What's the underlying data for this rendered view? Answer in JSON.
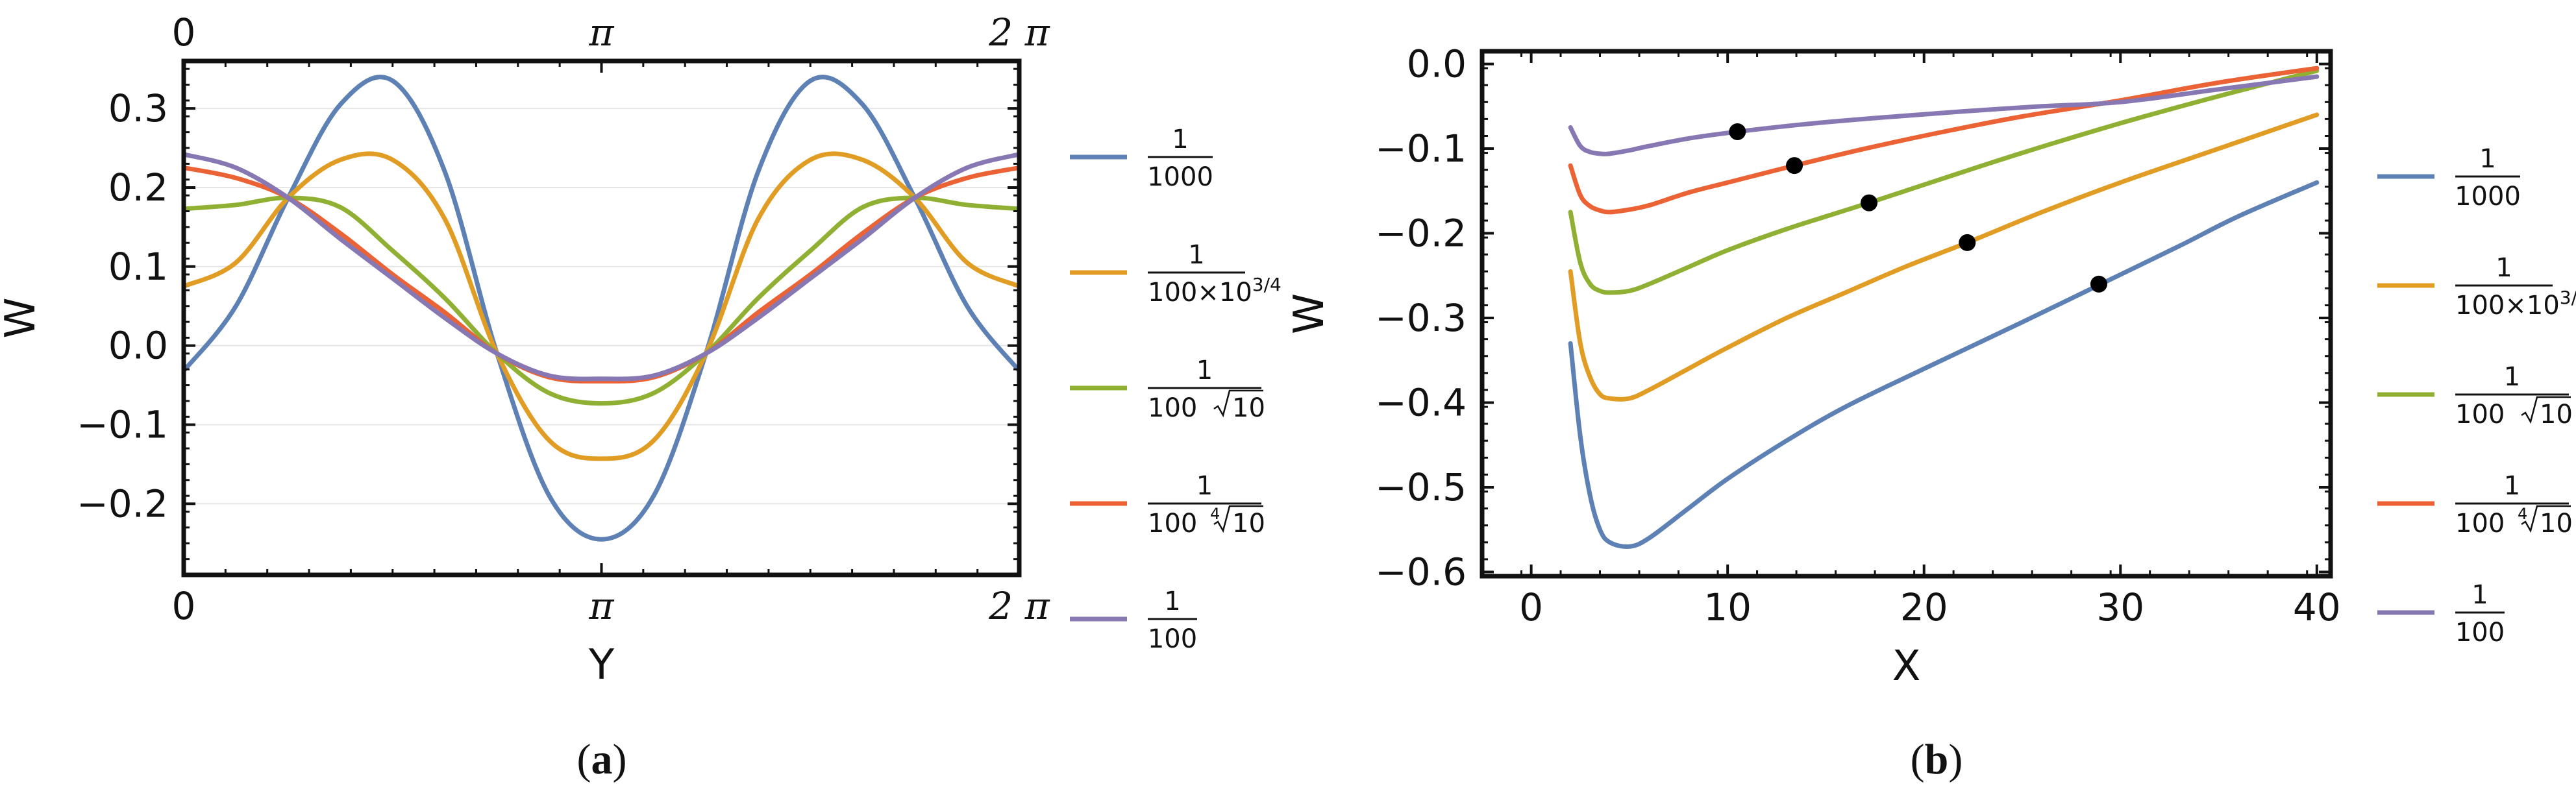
{
  "chart_data": [
    {
      "id": "a",
      "type": "line",
      "panel_label": "a",
      "xlabel": "Y",
      "ylabel": "W",
      "xlim": [
        0,
        6.2832
      ],
      "ylim": [
        -0.29,
        0.36
      ],
      "xticks": [
        {
          "value": 0,
          "label": "0"
        },
        {
          "value": 3.14159,
          "label": "π"
        },
        {
          "value": 6.28318,
          "label": "2 π"
        }
      ],
      "top_xticks": [
        {
          "value": 0,
          "label": "0"
        },
        {
          "value": 3.14159,
          "label": "π"
        },
        {
          "value": 6.28318,
          "label": "2 π"
        }
      ],
      "yticks": [
        {
          "value": -0.2,
          "label": "−0.2"
        },
        {
          "value": -0.1,
          "label": "−0.1"
        },
        {
          "value": 0.0,
          "label": "0.0"
        },
        {
          "value": 0.1,
          "label": "0.1"
        },
        {
          "value": 0.2,
          "label": "0.2"
        },
        {
          "value": 0.3,
          "label": "0.3"
        }
      ],
      "grid": "horizontal",
      "legend_position": "right",
      "series": [
        {
          "name": "1/1000",
          "color": "#5E81B5",
          "x": [
            0,
            0.3927,
            0.7854,
            1.1781,
            1.5708,
            1.9635,
            2.3562,
            2.7489,
            3.1416,
            3.5343,
            3.927,
            4.3197,
            4.7124,
            5.1051,
            5.4978,
            5.8905,
            6.2832
          ],
          "y": [
            -0.032,
            0.05,
            0.187,
            0.305,
            0.335,
            0.22,
            -0.01,
            -0.19,
            -0.245,
            -0.19,
            -0.01,
            0.22,
            0.335,
            0.305,
            0.187,
            0.05,
            -0.032
          ]
        },
        {
          "name": "1/(100×10^{3/4})",
          "color": "#E19C24",
          "x": [
            0,
            0.3927,
            0.7854,
            1.1781,
            1.5708,
            1.9635,
            2.3562,
            2.7489,
            3.1416,
            3.5343,
            3.927,
            4.3197,
            4.7124,
            5.1051,
            5.4978,
            5.8905,
            6.2832
          ],
          "y": [
            0.075,
            0.105,
            0.187,
            0.235,
            0.235,
            0.16,
            -0.01,
            -0.12,
            -0.143,
            -0.12,
            -0.01,
            0.16,
            0.235,
            0.235,
            0.187,
            0.105,
            0.075
          ]
        },
        {
          "name": "1/(100 √10)",
          "color": "#8FB032",
          "x": [
            0,
            0.3927,
            0.7854,
            1.1781,
            1.5708,
            1.9635,
            2.3562,
            2.7489,
            3.1416,
            3.5343,
            3.927,
            4.3197,
            4.7124,
            5.1051,
            5.4978,
            5.8905,
            6.2832
          ],
          "y": [
            0.173,
            0.178,
            0.187,
            0.175,
            0.12,
            0.06,
            -0.01,
            -0.06,
            -0.073,
            -0.06,
            -0.01,
            0.06,
            0.12,
            0.175,
            0.187,
            0.178,
            0.173
          ]
        },
        {
          "name": "1/(100 ∜10)",
          "color": "#EB6235",
          "x": [
            0,
            0.3927,
            0.7854,
            1.1781,
            1.5708,
            1.9635,
            2.3562,
            2.7489,
            3.1416,
            3.5343,
            3.927,
            4.3197,
            4.7124,
            5.1051,
            5.4978,
            5.8905,
            6.2832
          ],
          "y": [
            0.225,
            0.212,
            0.187,
            0.142,
            0.09,
            0.042,
            -0.01,
            -0.04,
            -0.045,
            -0.04,
            -0.01,
            0.042,
            0.09,
            0.142,
            0.187,
            0.212,
            0.225
          ]
        },
        {
          "name": "1/100",
          "color": "#8778B3",
          "x": [
            0,
            0.3927,
            0.7854,
            1.1781,
            1.5708,
            1.9635,
            2.3562,
            2.7489,
            3.1416,
            3.5343,
            3.927,
            4.3197,
            4.7124,
            5.1051,
            5.4978,
            5.8905,
            6.2832
          ],
          "y": [
            0.242,
            0.225,
            0.187,
            0.135,
            0.085,
            0.035,
            -0.01,
            -0.038,
            -0.042,
            -0.038,
            -0.01,
            0.035,
            0.085,
            0.135,
            0.187,
            0.225,
            0.242
          ]
        }
      ]
    },
    {
      "id": "b",
      "type": "line",
      "panel_label": "b",
      "xlabel": "X",
      "ylabel": "W",
      "xlim": [
        -2.5,
        40.7
      ],
      "ylim": [
        -0.605,
        0.015
      ],
      "xticks": [
        {
          "value": 0,
          "label": "0"
        },
        {
          "value": 10,
          "label": "10"
        },
        {
          "value": 20,
          "label": "20"
        },
        {
          "value": 30,
          "label": "30"
        },
        {
          "value": 40,
          "label": "40"
        }
      ],
      "yticks": [
        {
          "value": -0.6,
          "label": "−0.6"
        },
        {
          "value": -0.5,
          "label": "−0.5"
        },
        {
          "value": -0.4,
          "label": "−0.4"
        },
        {
          "value": -0.3,
          "label": "−0.3"
        },
        {
          "value": -0.2,
          "label": "−0.2"
        },
        {
          "value": -0.1,
          "label": "−0.1"
        },
        {
          "value": 0.0,
          "label": "0.0"
        }
      ],
      "grid": "none",
      "legend_position": "right",
      "series": [
        {
          "name": "1/1000",
          "color": "#5E81B5",
          "x": [
            2,
            2.5,
            3,
            3.5,
            4,
            5,
            6,
            8,
            10,
            13,
            16,
            20,
            25,
            29,
            33,
            36,
            40
          ],
          "y": [
            -0.33,
            -0.44,
            -0.51,
            -0.55,
            -0.565,
            -0.57,
            -0.56,
            -0.525,
            -0.49,
            -0.445,
            -0.405,
            -0.36,
            -0.305,
            -0.26,
            -0.215,
            -0.18,
            -0.14
          ]
        },
        {
          "name": "1/(100×10^{3/4})",
          "color": "#E19C24",
          "x": [
            2,
            2.5,
            3,
            3.5,
            4,
            5,
            6,
            8,
            10,
            13,
            16,
            19,
            22.2,
            26,
            30,
            35,
            40
          ],
          "y": [
            -0.245,
            -0.33,
            -0.37,
            -0.39,
            -0.395,
            -0.395,
            -0.385,
            -0.36,
            -0.335,
            -0.3,
            -0.27,
            -0.24,
            -0.211,
            -0.175,
            -0.14,
            -0.1,
            -0.06
          ]
        },
        {
          "name": "1/(100 √10)",
          "color": "#8FB032",
          "x": [
            2,
            2.5,
            3,
            3.5,
            4,
            5,
            6,
            8,
            10,
            13,
            17.2,
            21,
            25,
            30,
            35,
            40
          ],
          "y": [
            -0.175,
            -0.235,
            -0.26,
            -0.268,
            -0.27,
            -0.268,
            -0.26,
            -0.24,
            -0.22,
            -0.195,
            -0.164,
            -0.135,
            -0.105,
            -0.07,
            -0.038,
            -0.008
          ]
        },
        {
          "name": "1/(100 ∜10)",
          "color": "#EB6235",
          "x": [
            2,
            2.5,
            3,
            3.5,
            4,
            5,
            6,
            8,
            10,
            13.4,
            17,
            21,
            25,
            30,
            35,
            40
          ],
          "y": [
            -0.12,
            -0.155,
            -0.168,
            -0.173,
            -0.175,
            -0.172,
            -0.167,
            -0.152,
            -0.14,
            -0.12,
            -0.1,
            -0.08,
            -0.062,
            -0.043,
            -0.022,
            -0.005
          ]
        },
        {
          "name": "1/100",
          "color": "#8778B3",
          "x": [
            2,
            2.5,
            3,
            3.5,
            4,
            5,
            6,
            8,
            10.5,
            14,
            18,
            22,
            26,
            30,
            35,
            40
          ],
          "y": [
            -0.075,
            -0.097,
            -0.104,
            -0.106,
            -0.106,
            -0.102,
            -0.097,
            -0.088,
            -0.08,
            -0.071,
            -0.063,
            -0.056,
            -0.05,
            -0.045,
            -0.03,
            -0.015
          ]
        }
      ],
      "markers": [
        {
          "x": 28.9,
          "y": -0.26
        },
        {
          "x": 22.2,
          "y": -0.211
        },
        {
          "x": 17.2,
          "y": -0.164
        },
        {
          "x": 13.4,
          "y": -0.12
        },
        {
          "x": 10.5,
          "y": -0.08
        }
      ]
    }
  ],
  "legend": [
    {
      "series": "1/1000",
      "numerator": "1",
      "denominator": "1000"
    },
    {
      "series": "1/(100×10^{3/4})",
      "numerator": "1",
      "denominator": "100×10",
      "exponent": "3/4"
    },
    {
      "series": "1/(100 √10)",
      "numerator": "1",
      "denominator": "100 ",
      "radical": "10"
    },
    {
      "series": "1/(100 ∜10)",
      "numerator": "1",
      "denominator": "100 ",
      "radical_index": "4",
      "radical": "10"
    },
    {
      "series": "1/100",
      "numerator": "1",
      "denominator": "100"
    }
  ]
}
